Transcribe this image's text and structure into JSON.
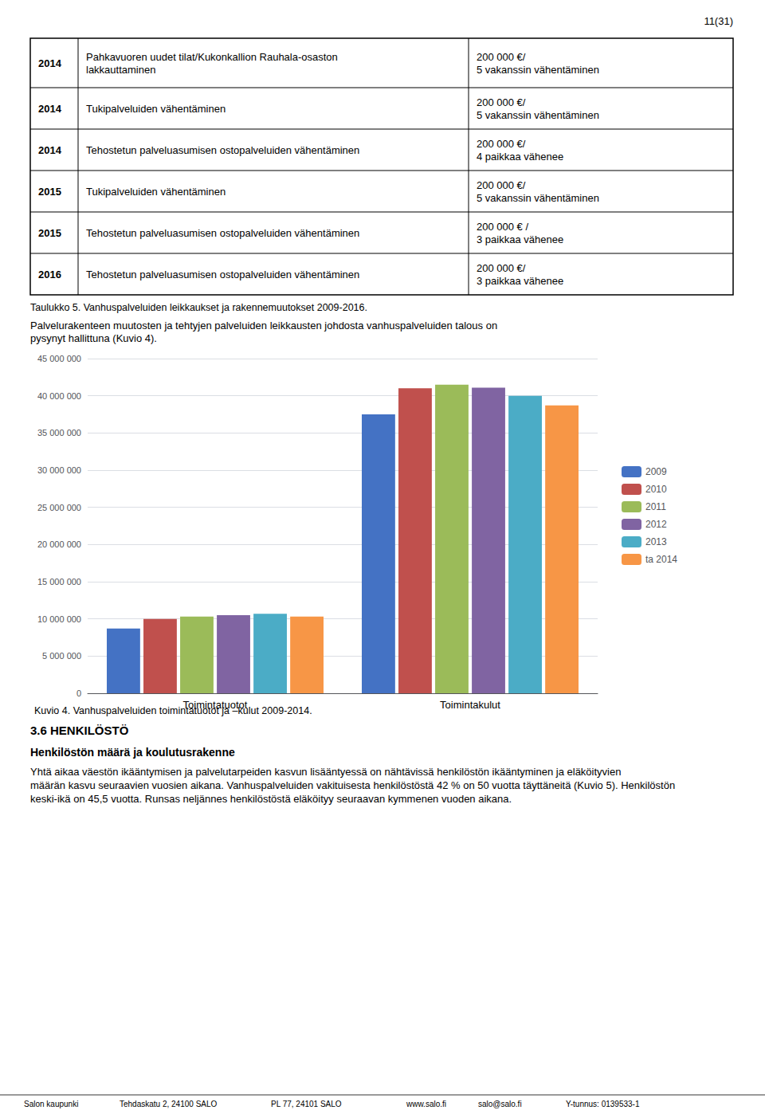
{
  "chart_data": {
    "type": "bar",
    "title": "Kuvio 4. Vanhuspalveluiden toimintatuotot ja –kulut 2009-2014.",
    "categories": [
      "Toimintatuotot",
      "Toimintakulut"
    ],
    "series": [
      {
        "name": "2009",
        "color": "#4472C4",
        "values": [
          8700000,
          37500000
        ]
      },
      {
        "name": "2010",
        "color": "#C0504D",
        "values": [
          10000000,
          41000000
        ]
      },
      {
        "name": "2011",
        "color": "#9BBB59",
        "values": [
          10300000,
          41500000
        ]
      },
      {
        "name": "2012",
        "color": "#8064A2",
        "values": [
          10500000,
          41100000
        ]
      },
      {
        "name": "2013",
        "color": "#4BACC6",
        "values": [
          10700000,
          40000000
        ]
      },
      {
        "name": "ta 2014",
        "color": "#F79646",
        "values": [
          10300000,
          38700000
        ]
      }
    ],
    "ylim": [
      0,
      45000000
    ],
    "yticks": [
      0,
      {
        "value": 5000000,
        "label": "5 000 000"
      },
      {
        "value": 10000000,
        "label": "10 000 000"
      },
      {
        "value": 15000000,
        "label": "15 000 000"
      },
      {
        "value": 20000000,
        "label": "20 000 000"
      },
      {
        "value": 25000000,
        "label": "25 000 000"
      },
      {
        "value": 30000000,
        "label": "30 000 000"
      },
      {
        "value": 35000000,
        "label": "35 000 000"
      },
      {
        "value": 40000000,
        "label": "40 000 000"
      },
      {
        "value": 45000000,
        "label": "45 000 000"
      }
    ],
    "grid": true,
    "legend": "right",
    "annotations": [
      "11(31)",
      "2014",
      "Pahkavuoren uudet tilat/Kukonkallion Rauhala-osaston\nlakkauttaminen",
      "200 000 €/\n5 vakanssin vähentäminen",
      "2014",
      "Tukipalveluiden vähentäminen",
      "200 000 €/\n5 vakanssin vähentäminen",
      "2014",
      "Tehostetun palveluasumisen ostopalveluiden vähentäminen",
      "200 000 €/\n4 paikkaa vähenee",
      "2015",
      "Tukipalveluiden vähentäminen",
      "200 000 €/\n5 vakanssin vähentäminen",
      "2015",
      "Tehostetun palveluasumisen ostopalveluiden vähentäminen",
      "200 000 € /\n3 paikkaa vähenee",
      "2016",
      "Tehostetun palveluasumisen ostopalveluiden vähentäminen",
      "200 000 €/\n3 paikkaa vähenee",
      "Taulukko 5. Vanhuspalveluiden leikkaukset ja rakennemuutokset 2009-2016.",
      "Palvelurakenteen muutosten ja tehtyjen palveluiden leikkausten johdosta vanhuspalveluiden talous on\npysynyt hallittuna (Kuvio 4).",
      "3.6 HENKILÖSTÖ",
      "Henkilöstön määrä ja koulutusrakenne",
      "Yhtä aikaa väestön ikääntymisen ja palvelutarpeiden kasvun lisääntyessä on nähtävissä henkilöstön ikääntyminen ja eläköityvien määrän kasvu seuraavien vuosien aikana. Vanhuspalveluiden vakituisesta henkilöstöstä 42 % on 50 vuotta täyttäneitä (Kuvio 5). Henkilöstön keski-ikä on 45,5 vuotta. Runsas neljännes henkilöstöstä eläköityy seuraavan kymmenen vuoden aikana.",
      "Salon kaupunki",
      "Tehdaskatu 2, 24100 SALO",
      "PL 77, 24101 SALO",
      "www.salo.fi",
      "salo@salo.fi",
      "Y-tunnus: 0139533-1"
    ]
  }
}
